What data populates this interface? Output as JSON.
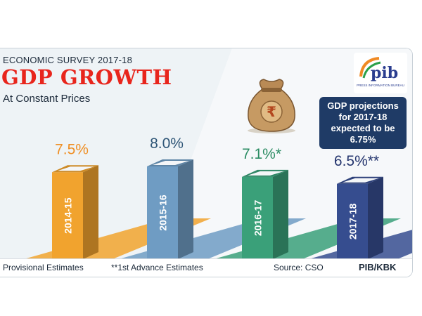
{
  "header": {
    "survey_label": "ECONOMIC SURVEY 2017-18",
    "title": "GDP GROWTH",
    "subtitle": "At Constant Prices"
  },
  "logo": {
    "text": "pib",
    "caption": "PRESS INFORMATION BUREAU"
  },
  "callout": {
    "text": "GDP projections for 2017-18 expected to be 6.75%"
  },
  "footer": {
    "footnote_1": "Provisional Estimates",
    "footnote_2": "**1st Advance Estimates",
    "source": "Source: CSO",
    "credit": "PIB/KBK"
  },
  "icons": {
    "money_bag": "money-bag-rupee-icon"
  },
  "colors": {
    "title_red": "#e8251c",
    "callout_navy": "#1f3b66"
  },
  "chart_data": {
    "type": "bar",
    "categories": [
      "2014-15",
      "2015-16",
      "2016-17",
      "2017-18"
    ],
    "values": [
      7.5,
      8.0,
      7.1,
      6.5
    ],
    "value_labels": [
      "7.5%",
      "8.0%",
      "7.1%*",
      "6.5%**"
    ],
    "bar_colors": [
      "#f1a32e",
      "#6f9cc3",
      "#3aa079",
      "#364d8f"
    ],
    "label_colors": [
      "#ef8f25",
      "#2f5677",
      "#2b8c63",
      "#24356e"
    ],
    "grid": false
  }
}
